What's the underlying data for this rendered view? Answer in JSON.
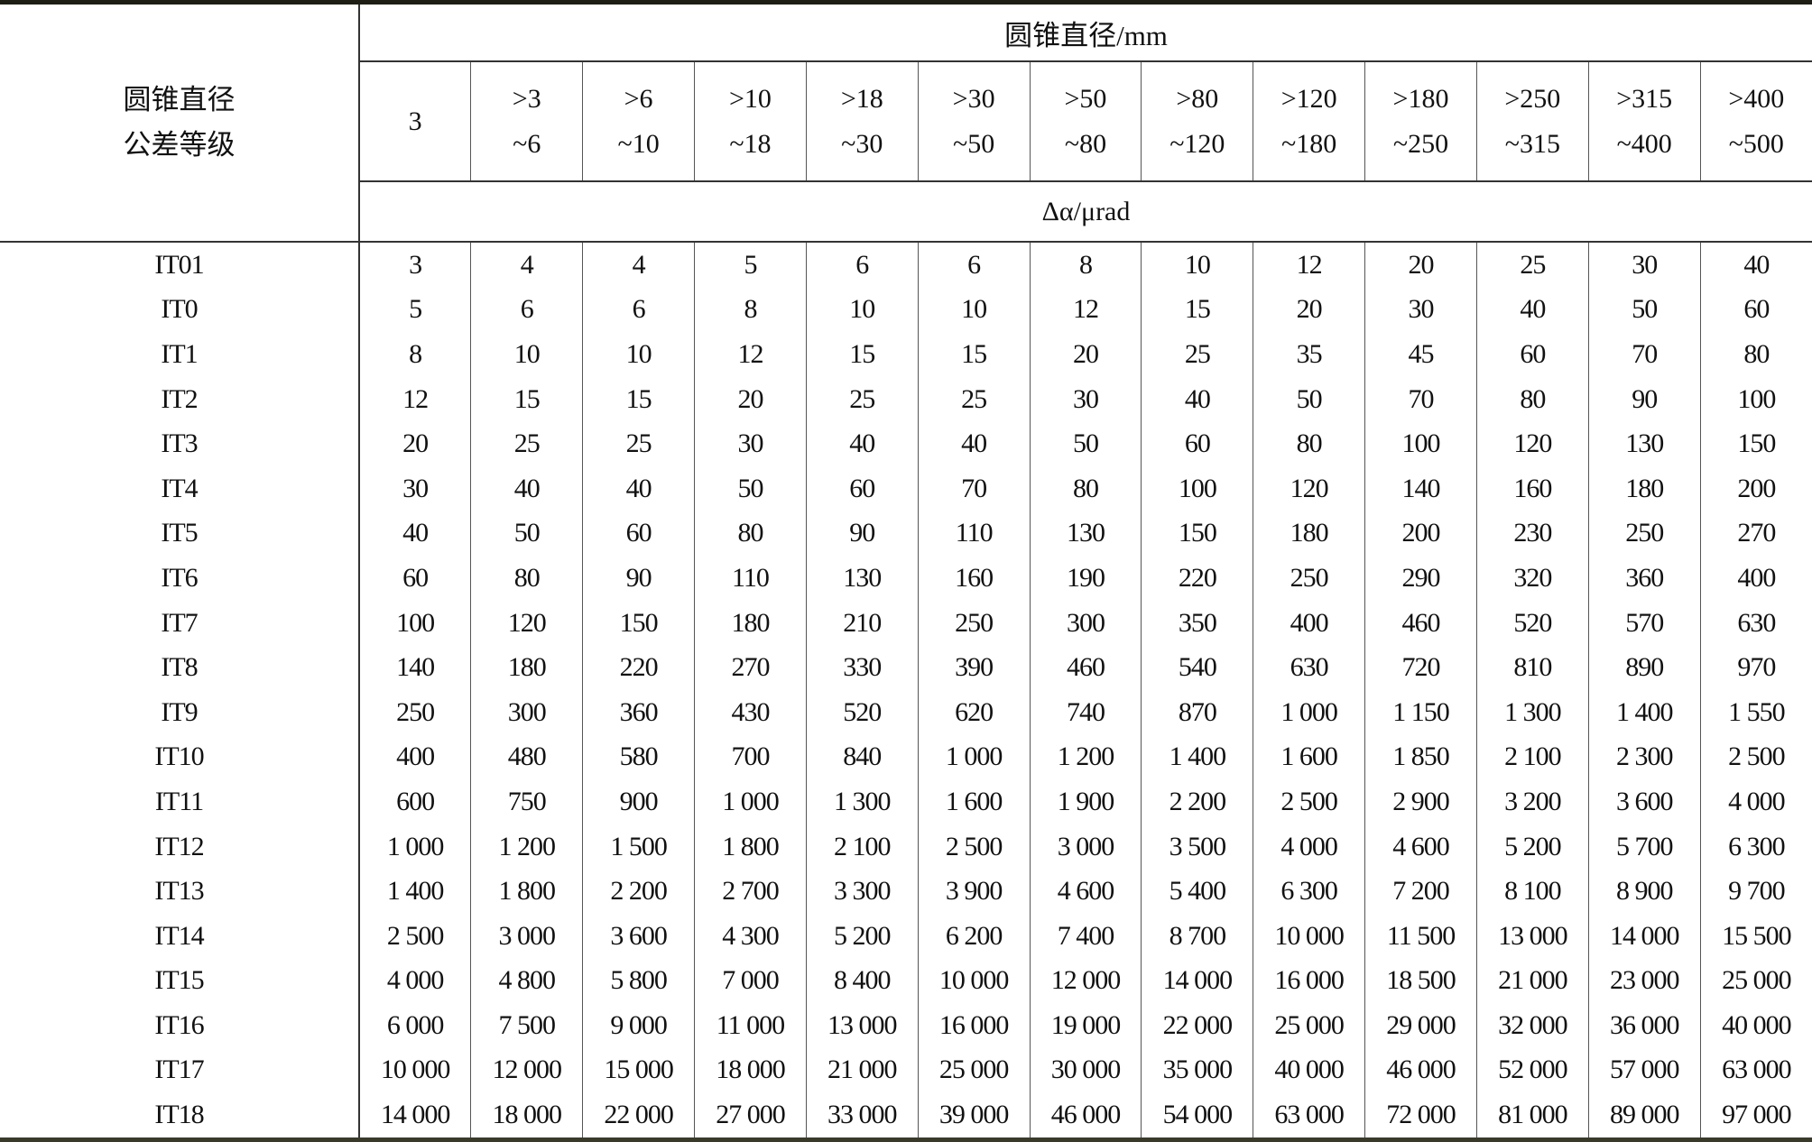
{
  "table": {
    "stub_header": [
      "圆锥直径",
      "公差等级"
    ],
    "group_header": "圆锥直径/mm",
    "unit_header": "Δα/μrad",
    "columns": [
      [
        "3"
      ],
      [
        ">3",
        "~6"
      ],
      [
        ">6",
        "~10"
      ],
      [
        ">10",
        "~18"
      ],
      [
        ">18",
        "~30"
      ],
      [
        ">30",
        "~50"
      ],
      [
        ">50",
        "~80"
      ],
      [
        ">80",
        "~120"
      ],
      [
        ">120",
        "~180"
      ],
      [
        ">180",
        "~250"
      ],
      [
        ">250",
        "~315"
      ],
      [
        ">315",
        "~400"
      ],
      [
        ">400",
        "~500"
      ]
    ],
    "rows": [
      {
        "grade": "IT01",
        "values": [
          "3",
          "4",
          "4",
          "5",
          "6",
          "6",
          "8",
          "10",
          "12",
          "20",
          "25",
          "30",
          "40"
        ]
      },
      {
        "grade": "IT0",
        "values": [
          "5",
          "6",
          "6",
          "8",
          "10",
          "10",
          "12",
          "15",
          "20",
          "30",
          "40",
          "50",
          "60"
        ]
      },
      {
        "grade": "IT1",
        "values": [
          "8",
          "10",
          "10",
          "12",
          "15",
          "15",
          "20",
          "25",
          "35",
          "45",
          "60",
          "70",
          "80"
        ]
      },
      {
        "grade": "IT2",
        "values": [
          "12",
          "15",
          "15",
          "20",
          "25",
          "25",
          "30",
          "40",
          "50",
          "70",
          "80",
          "90",
          "100"
        ]
      },
      {
        "grade": "IT3",
        "values": [
          "20",
          "25",
          "25",
          "30",
          "40",
          "40",
          "50",
          "60",
          "80",
          "100",
          "120",
          "130",
          "150"
        ]
      },
      {
        "grade": "IT4",
        "values": [
          "30",
          "40",
          "40",
          "50",
          "60",
          "70",
          "80",
          "100",
          "120",
          "140",
          "160",
          "180",
          "200"
        ]
      },
      {
        "grade": "IT5",
        "values": [
          "40",
          "50",
          "60",
          "80",
          "90",
          "110",
          "130",
          "150",
          "180",
          "200",
          "230",
          "250",
          "270"
        ]
      },
      {
        "grade": "IT6",
        "values": [
          "60",
          "80",
          "90",
          "110",
          "130",
          "160",
          "190",
          "220",
          "250",
          "290",
          "320",
          "360",
          "400"
        ]
      },
      {
        "grade": "IT7",
        "values": [
          "100",
          "120",
          "150",
          "180",
          "210",
          "250",
          "300",
          "350",
          "400",
          "460",
          "520",
          "570",
          "630"
        ]
      },
      {
        "grade": "IT8",
        "values": [
          "140",
          "180",
          "220",
          "270",
          "330",
          "390",
          "460",
          "540",
          "630",
          "720",
          "810",
          "890",
          "970"
        ]
      },
      {
        "grade": "IT9",
        "values": [
          "250",
          "300",
          "360",
          "430",
          "520",
          "620",
          "740",
          "870",
          "1 000",
          "1 150",
          "1 300",
          "1 400",
          "1 550"
        ]
      },
      {
        "grade": "IT10",
        "values": [
          "400",
          "480",
          "580",
          "700",
          "840",
          "1 000",
          "1 200",
          "1 400",
          "1 600",
          "1 850",
          "2 100",
          "2 300",
          "2 500"
        ]
      },
      {
        "grade": "IT11",
        "values": [
          "600",
          "750",
          "900",
          "1 000",
          "1 300",
          "1 600",
          "1 900",
          "2 200",
          "2 500",
          "2 900",
          "3 200",
          "3 600",
          "4 000"
        ]
      },
      {
        "grade": "IT12",
        "values": [
          "1 000",
          "1 200",
          "1 500",
          "1 800",
          "2 100",
          "2 500",
          "3 000",
          "3 500",
          "4 000",
          "4 600",
          "5 200",
          "5 700",
          "6 300"
        ]
      },
      {
        "grade": "IT13",
        "values": [
          "1 400",
          "1 800",
          "2 200",
          "2 700",
          "3 300",
          "3 900",
          "4 600",
          "5 400",
          "6 300",
          "7 200",
          "8 100",
          "8 900",
          "9 700"
        ]
      },
      {
        "grade": "IT14",
        "values": [
          "2 500",
          "3 000",
          "3 600",
          "4 300",
          "5 200",
          "6 200",
          "7 400",
          "8 700",
          "10 000",
          "11 500",
          "13 000",
          "14 000",
          "15 500"
        ]
      },
      {
        "grade": "IT15",
        "values": [
          "4 000",
          "4 800",
          "5 800",
          "7 000",
          "8 400",
          "10 000",
          "12 000",
          "14 000",
          "16 000",
          "18 500",
          "21 000",
          "23 000",
          "25 000"
        ]
      },
      {
        "grade": "IT16",
        "values": [
          "6 000",
          "7 500",
          "9 000",
          "11 000",
          "13 000",
          "16 000",
          "19 000",
          "22 000",
          "25 000",
          "29 000",
          "32 000",
          "36 000",
          "40 000"
        ]
      },
      {
        "grade": "IT17",
        "values": [
          "10 000",
          "12 000",
          "15 000",
          "18 000",
          "21 000",
          "25 000",
          "30 000",
          "35 000",
          "40 000",
          "46 000",
          "52 000",
          "57 000",
          "63 000"
        ]
      },
      {
        "grade": "IT18",
        "values": [
          "14 000",
          "18 000",
          "22 000",
          "27 000",
          "33 000",
          "39 000",
          "46 000",
          "54 000",
          "63 000",
          "72 000",
          "81 000",
          "89 000",
          "97 000"
        ]
      }
    ]
  }
}
